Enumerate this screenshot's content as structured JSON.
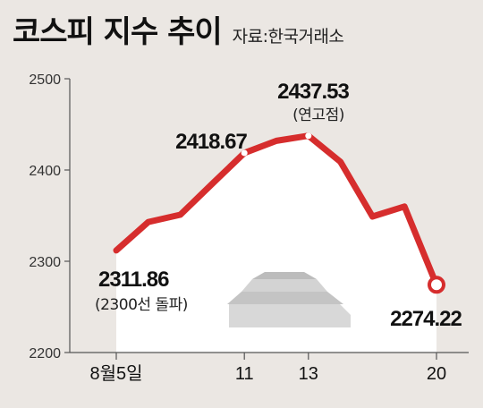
{
  "chart_data": {
    "type": "line",
    "title": "코스피 지수 추이",
    "source": "자료:한국거래소",
    "ylim": [
      2200,
      2500
    ],
    "y_ticks": [
      2200,
      2300,
      2400,
      2500
    ],
    "x_tick_labels": [
      "8월5일",
      "11",
      "13",
      "20"
    ],
    "series": [
      {
        "values": [
          2311.86,
          2343,
          2351,
          2385,
          2418.67,
          2432,
          2437.53,
          2409,
          2349,
          2360,
          2274.22
        ]
      }
    ],
    "callouts": [
      {
        "index": 0,
        "value_text": "2311.86",
        "note": "(2300선 돌파)"
      },
      {
        "index": 4,
        "value_text": "2418.67",
        "note": ""
      },
      {
        "index": 6,
        "value_text": "2437.53",
        "note": "(연고점)"
      },
      {
        "index": 10,
        "value_text": "2274.22",
        "note": ""
      }
    ],
    "colors": {
      "line": "#d62d2d",
      "background": "#ebe7e3",
      "plot_background": "#ffffff",
      "axis": "#555555"
    }
  }
}
